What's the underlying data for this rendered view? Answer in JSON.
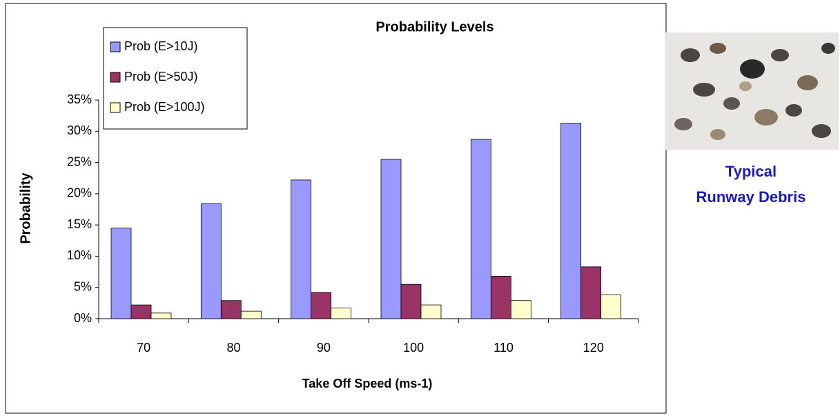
{
  "chart_data": {
    "type": "bar",
    "title": "Probability Levels",
    "x_label": "Take Off Speed (ms-1)",
    "y_label": "Probability",
    "categories": [
      "70",
      "80",
      "90",
      "100",
      "110",
      "120"
    ],
    "series": [
      {
        "name": "Prob (E>10J)",
        "color": "#9999ff",
        "values": [
          14.5,
          18.4,
          22.2,
          25.5,
          28.7,
          31.3
        ]
      },
      {
        "name": "Prob (E>50J)",
        "color": "#993366",
        "values": [
          2.2,
          2.9,
          4.2,
          5.5,
          6.8,
          8.3
        ]
      },
      {
        "name": "Prob (E>100J)",
        "color": "#ffffcc",
        "values": [
          0.9,
          1.2,
          1.7,
          2.2,
          2.9,
          3.8
        ]
      }
    ],
    "ylim": [
      0,
      35
    ],
    "yticks": [
      {
        "value": 0,
        "label": "0%"
      },
      {
        "value": 5,
        "label": "5%"
      },
      {
        "value": 10,
        "label": "10%"
      },
      {
        "value": 15,
        "label": "15%"
      },
      {
        "value": 20,
        "label": "20%"
      },
      {
        "value": 25,
        "label": "25%"
      },
      {
        "value": 30,
        "label": "30%"
      },
      {
        "value": 35,
        "label": "35%"
      }
    ],
    "grid": false,
    "legend": "top-left"
  },
  "side_panel": {
    "caption": [
      "Typical",
      "Runway Debris"
    ]
  }
}
